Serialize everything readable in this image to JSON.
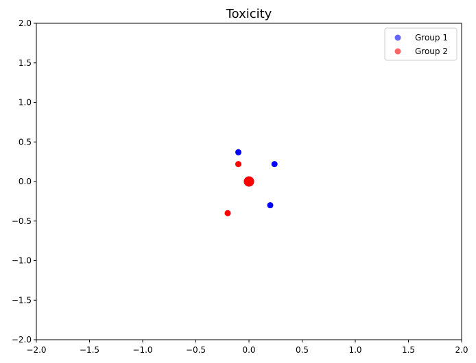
{
  "chart_data": {
    "type": "scatter",
    "title": "Toxicity",
    "xlabel": "",
    "ylabel": "",
    "xlim": [
      -2,
      2
    ],
    "ylim": [
      -2,
      2
    ],
    "xticks": [
      -2.0,
      -1.5,
      -1.0,
      -0.5,
      0.0,
      0.5,
      1.0,
      1.5,
      2.0
    ],
    "yticks": [
      -2.0,
      -1.5,
      -1.0,
      -0.5,
      0.0,
      0.5,
      1.0,
      1.5,
      2.0
    ],
    "xtick_labels": [
      "−2.0",
      "−1.5",
      "−1.0",
      "−0.5",
      "0.0",
      "0.5",
      "1.0",
      "1.5",
      "2.0"
    ],
    "ytick_labels": [
      "−2.0",
      "−1.5",
      "−1.0",
      "−0.5",
      "0.0",
      "0.5",
      "1.0",
      "1.5",
      "2.0"
    ],
    "grid": false,
    "legend_position": "top-right",
    "series": [
      {
        "name": "Group 1",
        "color": "#0000ff",
        "points": [
          {
            "x": -0.1,
            "y": 0.37,
            "size": "small"
          },
          {
            "x": 0.24,
            "y": 0.22,
            "size": "small"
          },
          {
            "x": 0.2,
            "y": -0.3,
            "size": "small"
          },
          {
            "x": 0.0,
            "y": 0.0,
            "size": "large"
          }
        ]
      },
      {
        "name": "Group 2",
        "color": "#ff0000",
        "points": [
          {
            "x": -0.1,
            "y": 0.22,
            "size": "small"
          },
          {
            "x": -0.2,
            "y": -0.4,
            "size": "small"
          },
          {
            "x": 0.0,
            "y": 0.0,
            "size": "large"
          }
        ]
      }
    ]
  }
}
